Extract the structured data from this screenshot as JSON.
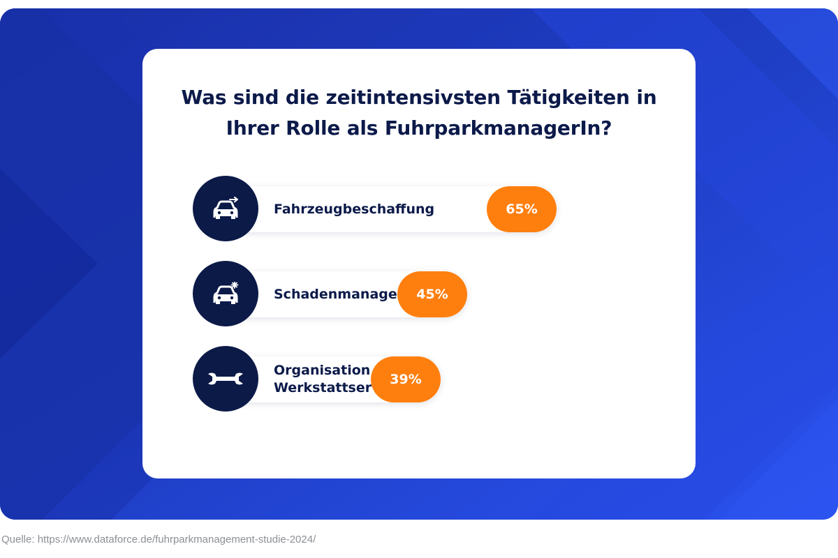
{
  "colors": {
    "background": "#1f3fc8",
    "card": "#ffffff",
    "text": "#0c1a4a",
    "icon_circle": "#0c1a48",
    "badge": "#ff7f0e"
  },
  "chart_data": {
    "type": "bar",
    "title": "Was sind die zeitintensivsten Tätigkeiten in\nIhrer Rolle als FuhrparkmanagerIn?",
    "value_unit": "%",
    "categories": [
      "Fahrzeugbeschaffung",
      "Schadenmanagement",
      "Organisation von\nWerkstattservices"
    ],
    "values": [
      65,
      45,
      39
    ],
    "value_labels": [
      "65%",
      "45%",
      "39%"
    ],
    "icons": [
      "car-arrow-icon",
      "car-damage-icon",
      "wrench-icon"
    ],
    "xlim": [
      0,
      100
    ]
  },
  "source": "Quelle: https://www.dataforce.de/fuhrparkmanagement-studie-2024/"
}
